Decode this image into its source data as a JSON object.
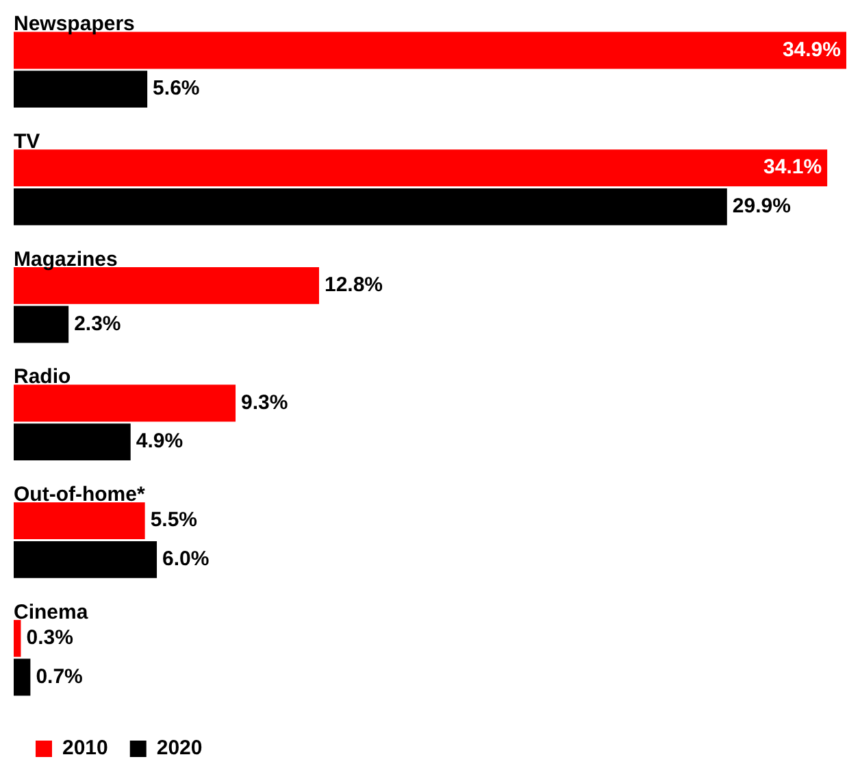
{
  "chart_data": {
    "type": "bar",
    "orientation": "horizontal",
    "categories": [
      "Newspapers",
      "TV",
      "Magazines",
      "Radio",
      "Out-of-home*",
      "Cinema"
    ],
    "series": [
      {
        "name": "2010",
        "color": "#ff0000",
        "values": [
          34.9,
          34.1,
          12.8,
          9.3,
          5.5,
          0.3
        ],
        "value_labels": [
          "34.9%",
          "34.1%",
          "12.8%",
          "9.3%",
          "5.5%",
          "0.3%"
        ]
      },
      {
        "name": "2020",
        "color": "#000000",
        "values": [
          5.6,
          29.9,
          2.3,
          4.9,
          6.0,
          0.7
        ],
        "value_labels": [
          "5.6%",
          "29.9%",
          "2.3%",
          "4.9%",
          "6.0%",
          "0.7%"
        ]
      }
    ],
    "legend": "bottom left"
  }
}
